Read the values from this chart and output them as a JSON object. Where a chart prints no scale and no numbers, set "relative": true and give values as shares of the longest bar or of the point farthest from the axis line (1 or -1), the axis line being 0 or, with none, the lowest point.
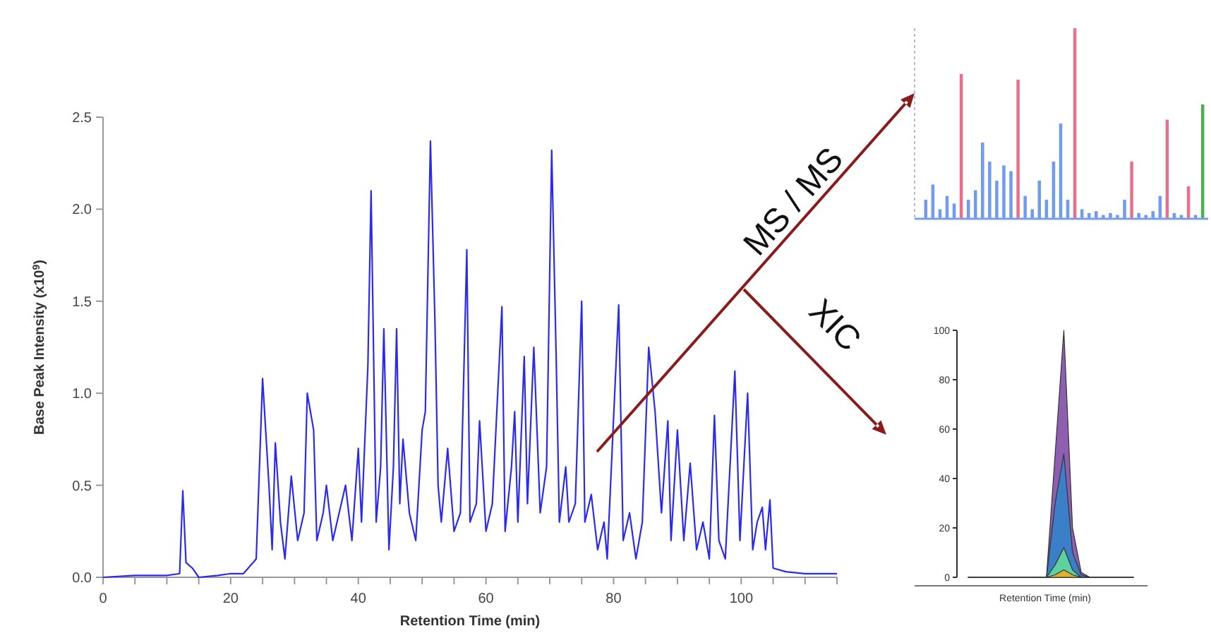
{
  "chart_data": [
    {
      "type": "line",
      "xlabel": "Retention Time (min)",
      "ylabel": "Base Peak Intensity (x10$^{9}$)",
      "xlim": [
        0,
        115
      ],
      "ylim": [
        0,
        2.5
      ],
      "xticks": [
        0,
        {
          "value": 5,
          "label": null
        },
        {
          "value": 10,
          "label": null
        },
        {
          "value": 15,
          "label": null
        },
        20,
        {
          "value": 25,
          "label": null
        },
        {
          "value": 30,
          "label": null
        },
        {
          "value": 35,
          "label": null
        },
        40,
        {
          "value": 45,
          "label": null
        },
        {
          "value": 50,
          "label": null
        },
        {
          "value": 55,
          "label": null
        },
        60,
        {
          "value": 65,
          "label": null
        },
        {
          "value": 70,
          "label": null
        },
        {
          "value": 75,
          "label": null
        },
        80,
        {
          "value": 85,
          "label": null
        },
        {
          "value": 90,
          "label": null
        },
        {
          "value": 95,
          "label": null
        },
        100,
        {
          "value": 105,
          "label": null
        },
        {
          "value": 110,
          "label": null
        },
        {
          "value": 115,
          "label": null
        }
      ],
      "yticks": [
        {
          "value": 0,
          "label": "0.0"
        },
        0.5,
        {
          "value": 1,
          "label": "1.0"
        },
        1.5,
        {
          "value": 2,
          "label": "2.0"
        },
        2.5
      ],
      "grid": false,
      "marker": "none",
      "line_style": "solid",
      "annotations": [
        "MS / MS",
        "XIC"
      ],
      "series": [
        {
          "color": "#2a2af0",
          "x": [
            0,
            5,
            10,
            12,
            12.5,
            13,
            14,
            15,
            18,
            20,
            22,
            24,
            25,
            26,
            26.5,
            27,
            27.8,
            28.5,
            29.5,
            30.5,
            31.5,
            32,
            33,
            33.5,
            34.5,
            35,
            36,
            37,
            38,
            39,
            40,
            40.5,
            41.5,
            42,
            42.8,
            43.5,
            44,
            44.8,
            45.5,
            46,
            46.5,
            47,
            48,
            49,
            50,
            50.5,
            51.3,
            52,
            52.5,
            53,
            54,
            55,
            56,
            57,
            57.5,
            58.5,
            59,
            60,
            61,
            62.5,
            63,
            64,
            64.5,
            65,
            66,
            66.5,
            67.5,
            68.5,
            69.5,
            70.3,
            71,
            71.5,
            72.5,
            73,
            74,
            75,
            75.5,
            76.5,
            77.5,
            78.5,
            79,
            80.8,
            81.5,
            82.5,
            83.5,
            84.5,
            85.5,
            86.5,
            87.5,
            88.5,
            89,
            90,
            91,
            92,
            93,
            94,
            95,
            95.8,
            96.5,
            97.5,
            99,
            99.8,
            101,
            101.8,
            102.5,
            103.3,
            103.8,
            104.5,
            105,
            107,
            110,
            115
          ],
          "values": [
            0,
            0.01,
            0.01,
            0.02,
            0.47,
            0.08,
            0.05,
            0,
            0.01,
            0.02,
            0.02,
            0.1,
            1.08,
            0.5,
            0.15,
            0.73,
            0.3,
            0.1,
            0.55,
            0.2,
            0.35,
            1.0,
            0.8,
            0.2,
            0.35,
            0.5,
            0.2,
            0.35,
            0.5,
            0.2,
            0.7,
            0.3,
            1.15,
            2.1,
            0.3,
            0.6,
            1.35,
            0.15,
            0.6,
            1.35,
            0.4,
            0.75,
            0.35,
            0.2,
            0.8,
            0.9,
            2.37,
            1.4,
            0.5,
            0.3,
            0.7,
            0.25,
            0.35,
            1.78,
            0.3,
            0.4,
            0.85,
            0.25,
            0.4,
            1.47,
            0.25,
            0.6,
            0.9,
            0.3,
            1.2,
            0.4,
            1.25,
            0.35,
            0.6,
            2.32,
            1.2,
            0.3,
            0.6,
            0.3,
            0.4,
            1.5,
            0.3,
            0.45,
            0.15,
            0.3,
            0.1,
            1.48,
            0.2,
            0.35,
            0.1,
            0.3,
            1.25,
            0.9,
            0.35,
            0.85,
            0.2,
            0.8,
            0.2,
            0.62,
            0.15,
            0.3,
            0.1,
            0.88,
            0.2,
            0.1,
            1.12,
            0.2,
            1.0,
            0.15,
            0.3,
            0.38,
            0.15,
            0.42,
            0.05,
            0.03,
            0.02,
            0.02
          ]
        }
      ]
    },
    {
      "type": "bar",
      "relative": true,
      "tick_labels": false,
      "categories": [
        null,
        null,
        null,
        null,
        null,
        null,
        null,
        null,
        null,
        null,
        null,
        null,
        null,
        null,
        null,
        null,
        null,
        null,
        null,
        null,
        null,
        null,
        null,
        null,
        null,
        null,
        null,
        null,
        null,
        null,
        null,
        null,
        null,
        null,
        null,
        null,
        null,
        null,
        null,
        null
      ],
      "values": [
        0.1,
        0.18,
        0.05,
        0.12,
        0.08,
        0.76,
        0.1,
        0.15,
        0.4,
        0.3,
        0.2,
        0.28,
        0.25,
        0.73,
        0.12,
        0.05,
        0.2,
        0.1,
        0.3,
        0.5,
        0.1,
        1,
        0.05,
        0.03,
        0.04,
        0.02,
        0.03,
        0.02,
        0.1,
        0.3,
        0.03,
        0.02,
        0.04,
        0.12,
        0.52,
        0.03,
        0.02,
        0.17,
        0.02,
        0.6
      ],
      "colors": [
        "#6f9cf0",
        "#6f9cf0",
        "#6f9cf0",
        "#6f9cf0",
        "#6f9cf0",
        "#e8708a",
        "#6f9cf0",
        "#6f9cf0",
        "#6f9cf0",
        "#6f9cf0",
        "#6f9cf0",
        "#6f9cf0",
        "#6f9cf0",
        "#e8708a",
        "#6f9cf0",
        "#6f9cf0",
        "#6f9cf0",
        "#6f9cf0",
        "#6f9cf0",
        "#6f9cf0",
        "#6f9cf0",
        "#e8708a",
        "#6f9cf0",
        "#6f9cf0",
        "#6f9cf0",
        "#6f9cf0",
        "#6f9cf0",
        "#6f9cf0",
        "#6f9cf0",
        "#e8708a",
        "#6f9cf0",
        "#6f9cf0",
        "#6f9cf0",
        "#6f9cf0",
        "#e8708a",
        "#6f9cf0",
        "#6f9cf0",
        "#e8708a",
        "#6f9cf0",
        "#4caf50"
      ]
    },
    {
      "type": "area",
      "xlabel": "Retention Time (min)",
      "ylim": [
        0,
        100
      ],
      "yticks": [
        0,
        20,
        40,
        60,
        80,
        100
      ],
      "tick_labels": "y",
      "categories": [
        null,
        null,
        null,
        null,
        null,
        null,
        null,
        null,
        null,
        null,
        null,
        null,
        null,
        null,
        null,
        null,
        null,
        null,
        null,
        null
      ],
      "series": [
        {
          "color": "#8e5fb0",
          "values": [
            0,
            0,
            0,
            0,
            0,
            0,
            0,
            0,
            0,
            0,
            50,
            100,
            20,
            2,
            0,
            0,
            0,
            0,
            0,
            0
          ]
        },
        {
          "color": "#3a7fc8",
          "values": [
            0,
            0,
            0,
            0,
            0,
            0,
            0,
            0,
            0,
            0,
            30,
            50,
            10,
            1,
            0,
            0,
            0,
            0,
            0,
            0
          ]
        },
        {
          "color": "#5fd0a0",
          "values": [
            0,
            0,
            0,
            0,
            0,
            0,
            0,
            0,
            0,
            0,
            5,
            12,
            3,
            0,
            0,
            0,
            0,
            0,
            0,
            0
          ]
        },
        {
          "color": "#e0b030",
          "values": [
            0,
            0,
            0,
            0,
            0,
            0,
            0,
            0,
            0,
            0,
            1,
            3,
            1,
            0,
            0,
            0,
            0,
            0,
            0,
            0
          ]
        }
      ]
    }
  ]
}
